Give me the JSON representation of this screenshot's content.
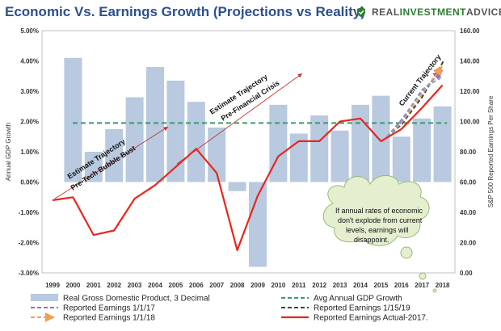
{
  "header": {
    "title": "Economic Vs. Earnings Growth (Projections vs Reality)",
    "brand_prefix": "REAL ",
    "brand_bold": "INVESTMENT",
    "brand_suffix": " ADVICE",
    "brand_icon": "shield-icon"
  },
  "chart_data": {
    "type": "bar",
    "x": [
      1999,
      2000,
      2001,
      2002,
      2003,
      2004,
      2005,
      2006,
      2007,
      2008,
      2009,
      2010,
      2011,
      2012,
      2013,
      2014,
      2015,
      2016,
      2017,
      2018
    ],
    "x_tick_labels": [
      "1999",
      "2000",
      "2001",
      "2002",
      "2003",
      "2004",
      "2005",
      "2006",
      "2007",
      "2008",
      "2009",
      "2010",
      "2011",
      "2012",
      "2013",
      "2014",
      "2015",
      "2016",
      "2017",
      "2018"
    ],
    "ylabel_left": "Annual GDP Growth",
    "ylabel_right": "S&P 500 Reported Earnings Per Share",
    "ylim_left": [
      -3,
      5
    ],
    "ylim_right": [
      0,
      160
    ],
    "y_left_ticks": [
      "-3.00%",
      "-2.00%",
      "-1.00%",
      "0.00%",
      "1.00%",
      "2.00%",
      "3.00%",
      "4.00%",
      "5.00%"
    ],
    "y_right_ticks": [
      "0.00",
      "20.00",
      "40.00",
      "60.00",
      "80.00",
      "100.00",
      "120.00",
      "140.00",
      "160.00"
    ],
    "gdp_bars": {
      "name": "Real Gross Domestic Product, 3 Decimal",
      "color": "#b8c9e0",
      "years": [
        2000,
        2001,
        2002,
        2003,
        2004,
        2005,
        2006,
        2007,
        2008,
        2009,
        2010,
        2011,
        2012,
        2013,
        2014,
        2015,
        2016,
        2017,
        2018
      ],
      "values": [
        4.1,
        1.0,
        1.75,
        2.8,
        3.8,
        3.35,
        2.65,
        1.8,
        -0.3,
        -2.8,
        2.55,
        1.6,
        2.2,
        1.7,
        2.55,
        2.85,
        1.5,
        2.1,
        2.5
      ]
    },
    "avg_gdp": {
      "name": "Avg Annual GDP Growth",
      "value": 1.95,
      "color": "#3a9a6a"
    },
    "reported_earnings": {
      "name": "Reported Earnings Actual-2017.",
      "color": "#e8261c",
      "x": [
        1999.0,
        2000.0,
        2001.0,
        2002.0,
        2003.0,
        2004.0,
        2005.0,
        2006.0,
        2007.0,
        2008.0,
        2009.0,
        2010.0,
        2011.0,
        2012.0,
        2013.0,
        2014.0,
        2015.0,
        2016.0,
        2017.0,
        2018.0
      ],
      "values": [
        48,
        50,
        25,
        28,
        49,
        58,
        70,
        82,
        66,
        15,
        51,
        77,
        87,
        87,
        100,
        102,
        87,
        95,
        109,
        124
      ]
    },
    "projections": [
      {
        "name": "Reported Earnings 1/1/17",
        "color": "#b060c0",
        "x": [
          2015.3,
          2016.0,
          2017.0,
          2018.0
        ],
        "values": [
          90,
          101,
          120,
          134
        ]
      },
      {
        "name": "Reported Earnings 1/15/19",
        "color": "#2a4a40",
        "x": [
          2015.3,
          2016.0,
          2017.0,
          2018.1
        ],
        "values": [
          90,
          98,
          116,
          141
        ]
      },
      {
        "name": "Reported Earnings 1/1/18",
        "color": "#f0a050",
        "x": [
          2015.3,
          2016.0,
          2017.0,
          2018.0
        ],
        "values": [
          90,
          99,
          118,
          137
        ]
      },
      {
        "name": "",
        "color": "#7aa3d8",
        "x": [
          2015.3,
          2016.0,
          2017.0,
          2018.0
        ],
        "values": [
          90,
          100,
          121,
          130
        ]
      }
    ],
    "legend": [
      {
        "label": "Real Gross Domestic Product, 3 Decimal",
        "kind": "box",
        "color": "#b8c9e0"
      },
      {
        "label": "Avg Annual GDP Growth",
        "kind": "dash",
        "color": "#3a9a6a"
      },
      {
        "label": "Reported Earnings 1/1/17",
        "kind": "dash",
        "color": "#b060c0"
      },
      {
        "label": "Reported Earnings 1/15/19",
        "kind": "dash",
        "color": "#2a4a40"
      },
      {
        "label": "Reported Earnings 1/1/18",
        "kind": "arrow",
        "color": "#f0a050"
      },
      {
        "label": "Reported Earnings Actual-2017.",
        "kind": "line",
        "color": "#e8261c"
      }
    ],
    "annotations": {
      "tech_line1": "Estimate Trajectory",
      "tech_line2": "Pre-Tech Bubble Bust",
      "fin_line1": "Estimate Trajectory",
      "fin_line2": "Pre-Financial Crisis",
      "current": "Current Trajectory",
      "cloud_lines": [
        "If annual rates of economic",
        "don't explode from current",
        "levels, earnings will",
        "disappoint."
      ]
    },
    "grid": false
  }
}
